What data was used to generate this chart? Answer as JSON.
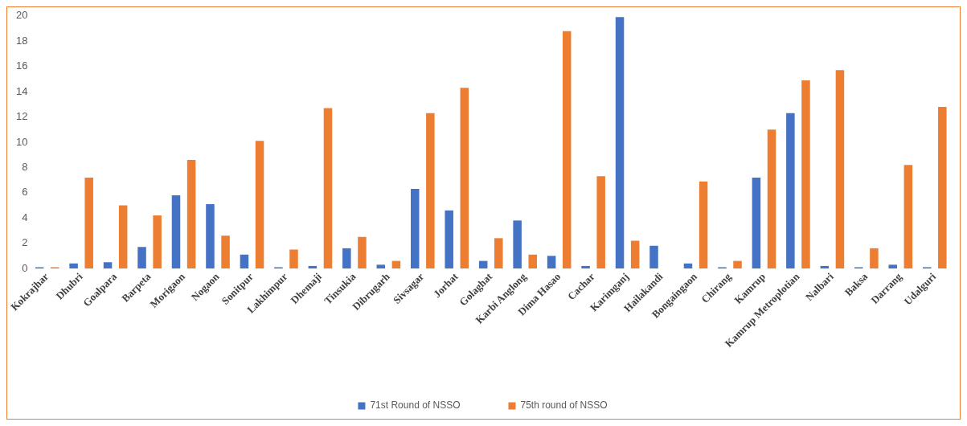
{
  "chart_data": {
    "type": "bar",
    "categories": [
      "Kokrajhar",
      "Dhubri",
      "Goalpara",
      "Barpeta",
      "Morigaon",
      "Nogaon",
      "Sonitpur",
      "Lakhimpur",
      "Dhemaji",
      "Tinsukia",
      "Dibrugarh",
      "Sivsagar",
      "Jorhat",
      "Golaghat",
      "Karbi Anglong",
      "Dima Hasao",
      "Cachar",
      "Karimganj",
      "Hailakandi",
      "Bongaingaon",
      "Chirang",
      "Kamrup",
      "Kamrup Metroplotian",
      "Nalbari",
      "Baksa",
      "Darrang",
      "Udalguri"
    ],
    "series": [
      {
        "name": "71st Round of NSSO",
        "color": "#4472c4",
        "values": [
          0.1,
          0.4,
          0.5,
          1.7,
          5.8,
          5.1,
          1.1,
          0.1,
          0.2,
          1.6,
          0.3,
          6.3,
          4.6,
          0.6,
          3.8,
          1.0,
          0.2,
          19.9,
          1.8,
          0.4,
          0.1,
          7.2,
          12.3,
          0.2,
          0.1,
          0.3,
          0.1
        ]
      },
      {
        "name": "75th round of NSSO",
        "color": "#ed7d31",
        "values": [
          0.1,
          7.2,
          5.0,
          4.2,
          8.6,
          2.6,
          10.1,
          1.5,
          12.7,
          2.5,
          0.6,
          12.3,
          14.3,
          2.4,
          1.1,
          18.8,
          7.3,
          2.2,
          0,
          6.9,
          0.6,
          11.0,
          14.9,
          15.7,
          1.6,
          8.2,
          12.8
        ]
      }
    ],
    "ylim": [
      0,
      20
    ],
    "yticks": [
      0,
      2,
      4,
      6,
      8,
      10,
      12,
      14,
      16,
      18,
      20
    ],
    "grid": false,
    "legend": "bottom"
  }
}
